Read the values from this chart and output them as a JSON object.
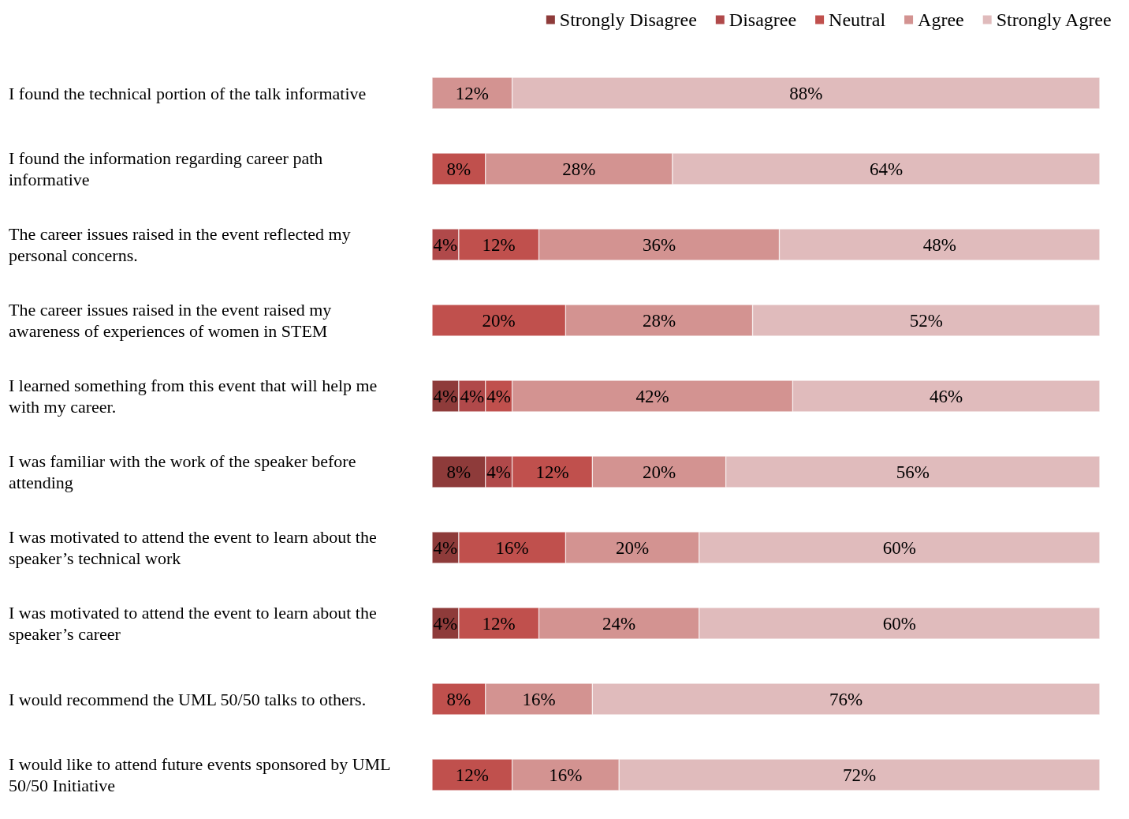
{
  "chart_data": {
    "type": "bar",
    "orientation": "horizontal",
    "stacked": true,
    "legend": "top right",
    "grid": false,
    "tick_labels": "y",
    "xlim": [
      0,
      100
    ],
    "categories": [
      "I found the technical portion of the talk informative",
      "I found the information regarding career path informative",
      "The career issues raised in the event reflected my personal concerns.",
      "The career issues raised in the event raised my awareness of experiences of women in STEM",
      "I learned something from this event that will help me with my career.",
      "I was familiar with the work of the speaker before attending",
      "I was motivated to attend the event to learn about the speaker’s technical work",
      "I was motivated to attend the event to learn about the speaker’s career",
      "I would recommend the UML 50/50 talks to others.",
      "I would like to attend future events sponsored by UML 50/50 Initiative"
    ],
    "series": [
      {
        "name": "Strongly Disagree",
        "color": "#8e3b3a",
        "values": [
          null,
          null,
          null,
          null,
          4,
          8,
          4,
          4,
          null,
          null
        ],
        "value_labels": [
          null,
          null,
          null,
          null,
          "4%",
          "8%",
          "4%",
          "4%",
          null,
          null
        ]
      },
      {
        "name": "Disagree",
        "color": "#b0494a",
        "values": [
          null,
          null,
          4,
          null,
          4,
          4,
          null,
          null,
          null,
          null
        ],
        "value_labels": [
          null,
          null,
          "4%",
          null,
          "4%",
          "4%",
          null,
          null,
          null,
          null
        ]
      },
      {
        "name": "Neutral",
        "color": "#c0504d",
        "values": [
          null,
          8,
          12,
          20,
          4,
          12,
          16,
          12,
          8,
          12
        ],
        "value_labels": [
          null,
          "8%",
          "12%",
          "20%",
          "4%",
          "12%",
          "16%",
          "12%",
          "8%",
          "12%"
        ]
      },
      {
        "name": "Agree",
        "color": "#d39391",
        "values": [
          12,
          28,
          36,
          28,
          42,
          20,
          20,
          24,
          16,
          16
        ],
        "value_labels": [
          "12%",
          "28%",
          "36%",
          "28%",
          "42%",
          "20%",
          "20%",
          "24%",
          "16%",
          "16%"
        ]
      },
      {
        "name": "Strongly Agree",
        "color": "#e0bbbc",
        "values": [
          88,
          64,
          48,
          52,
          46,
          56,
          60,
          60,
          76,
          72
        ],
        "value_labels": [
          "88%",
          "64%",
          "48%",
          "52%",
          "46%",
          "56%",
          "60%",
          "60%",
          "76%",
          "72%"
        ]
      }
    ]
  }
}
